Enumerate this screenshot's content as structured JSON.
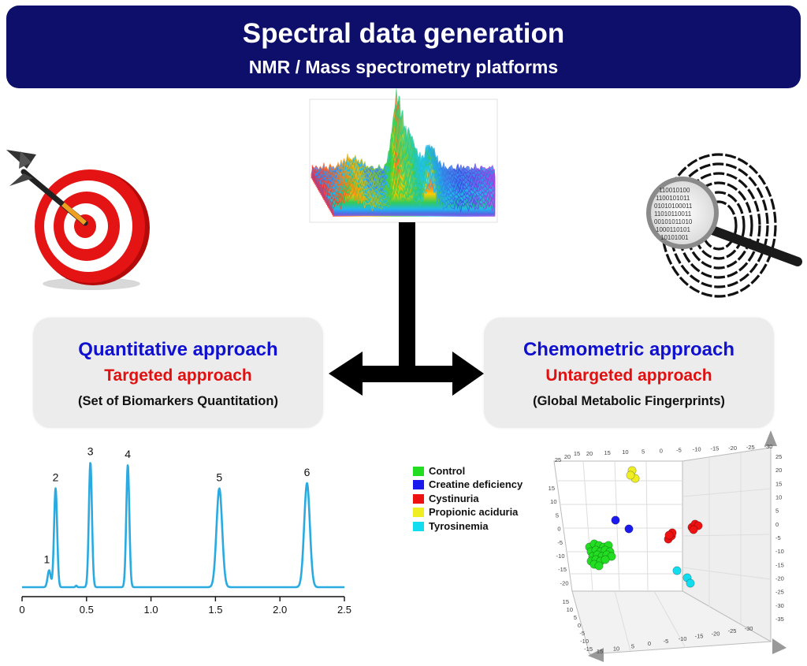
{
  "header": {
    "title": "Spectral data generation",
    "subtitle": "NMR / Mass spectrometry platforms"
  },
  "left_box": {
    "title": "Quantitative approach",
    "subtitle": "Targeted approach",
    "note": "(Set of Biomarkers Quantitation)"
  },
  "right_box": {
    "title": "Chemometric approach",
    "subtitle": "Untargeted approach",
    "note": "(Global Metabolic Fingerprints)"
  },
  "icons": {
    "left": "dartboard-target-icon",
    "right": "fingerprint-magnifier-icon",
    "center": "spectral-waterfall-plot"
  },
  "colors": {
    "header_bg": "#0d0f6b",
    "title_blue": "#1010d0",
    "subtitle_red": "#e01010",
    "trace": "#29abe2"
  },
  "chart_data": [
    {
      "type": "line",
      "x_ticks": [
        "0",
        "0.5",
        "1.0",
        "1.5",
        "2.0",
        "2.5"
      ],
      "xlim": [
        0,
        2.5
      ],
      "peaks": [
        {
          "label": "1",
          "x": 0.21,
          "height": 0.13
        },
        {
          "label": "2",
          "x": 0.26,
          "height": 0.76
        },
        {
          "label": "3",
          "x": 0.53,
          "height": 0.96
        },
        {
          "label": "4",
          "x": 0.82,
          "height": 0.94
        },
        {
          "label": "5",
          "x": 1.53,
          "height": 0.76
        },
        {
          "label": "6",
          "x": 2.21,
          "height": 0.8
        }
      ]
    },
    {
      "type": "scatter",
      "legend": [
        {
          "name": "Control",
          "color": "#22dd22"
        },
        {
          "name": "Creatine deficiency",
          "color": "#1a1aee"
        },
        {
          "name": "Cystinuria",
          "color": "#ee1111"
        },
        {
          "name": "Propionic aciduria",
          "color": "#eeee22"
        },
        {
          "name": "Tyrosinemia",
          "color": "#11ddee"
        }
      ],
      "top_ticks": [
        "20",
        "15",
        "10",
        "5",
        "0",
        "-5",
        "-10",
        "-15",
        "-20",
        "-25",
        "-30"
      ],
      "top_ticks_left": [
        "25",
        "20",
        "15"
      ],
      "left_ticks": [
        "15",
        "10",
        "5",
        "0",
        "-5",
        "-10",
        "-15",
        "-20"
      ],
      "right_ticks": [
        "25",
        "20",
        "15",
        "10",
        "5",
        "0",
        "-5",
        "-10",
        "-15",
        "-20",
        "-25",
        "-30",
        "-35"
      ],
      "bottom_ticks": [
        "-30",
        "-25",
        "-20",
        "-15",
        "-10",
        "-5",
        "0",
        "5",
        "10",
        "15"
      ],
      "bottom_left_ticks": [
        "15",
        "10",
        "5",
        "0",
        "-5",
        "-10",
        "-15"
      ]
    }
  ]
}
